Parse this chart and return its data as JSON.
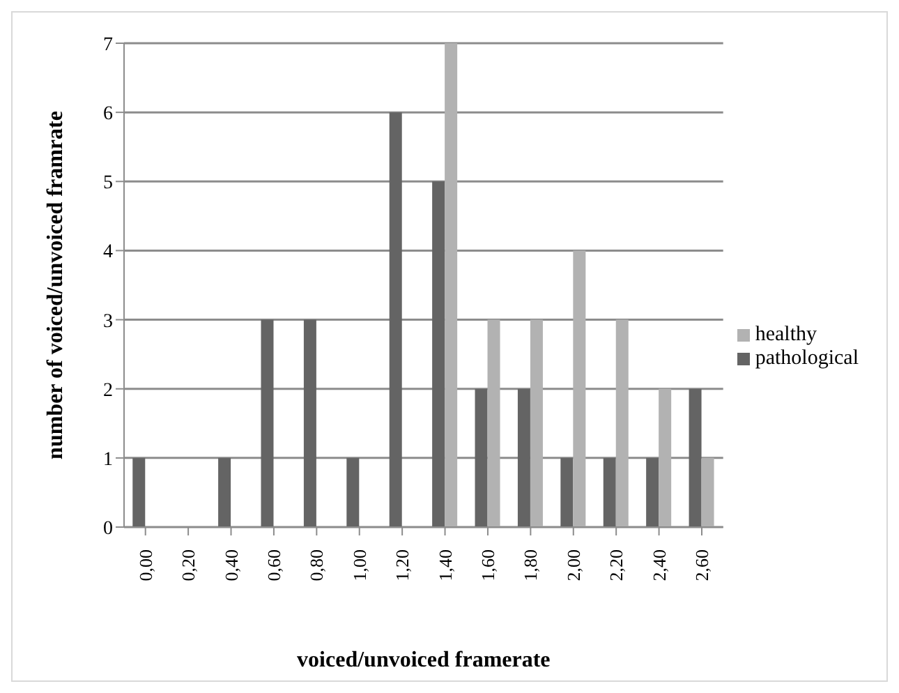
{
  "chart_data": {
    "type": "bar",
    "xlabel": "voiced/unvoiced framerate",
    "ylabel": "number of voiced/unvoiced framrate",
    "categories": [
      "0,00",
      "0,20",
      "0,40",
      "0,60",
      "0,80",
      "1,00",
      "1,20",
      "1,40",
      "1,60",
      "1,80",
      "2,00",
      "2,20",
      "2,40",
      "2,60"
    ],
    "series": [
      {
        "name": "pathological",
        "color": "#646464",
        "values": [
          1,
          0,
          1,
          3,
          3,
          1,
          6,
          5,
          2,
          2,
          1,
          1,
          1,
          2
        ]
      },
      {
        "name": "healthy",
        "color": "#b2b2b2",
        "values": [
          0,
          0,
          0,
          0,
          0,
          0,
          0,
          7,
          3,
          3,
          4,
          3,
          2,
          1
        ]
      }
    ],
    "ylim": [
      0,
      7
    ],
    "yticks": [
      0,
      1,
      2,
      3,
      4,
      5,
      6,
      7
    ],
    "grid": "y",
    "legend": "right"
  }
}
